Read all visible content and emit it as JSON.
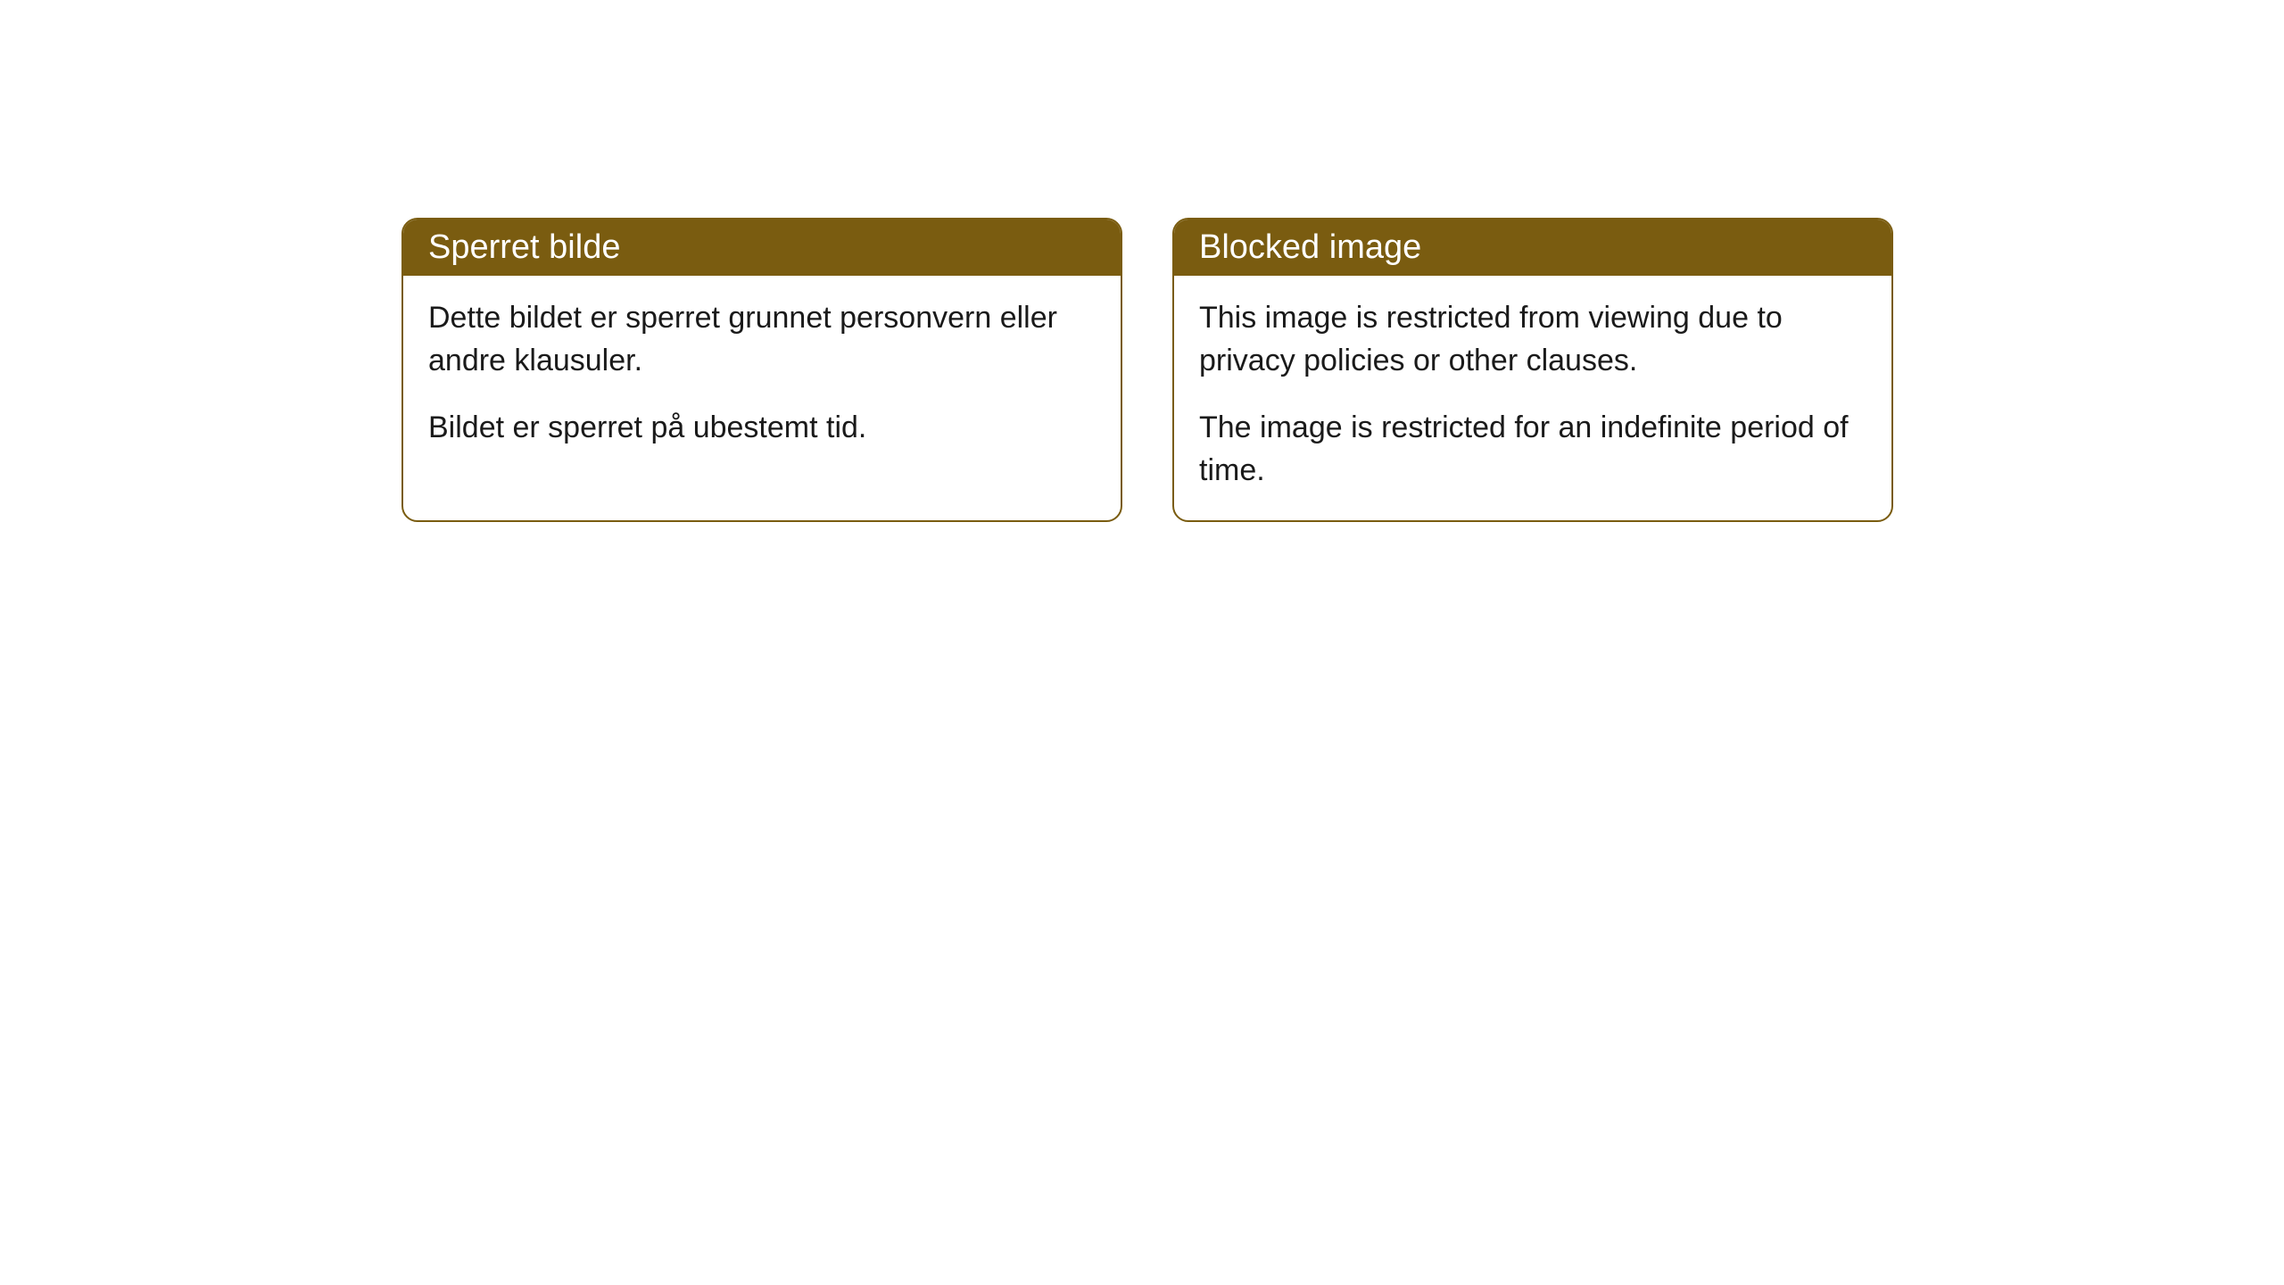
{
  "cards": [
    {
      "title": "Sperret bilde",
      "paragraph1": "Dette bildet er sperret grunnet personvern eller andre klausuler.",
      "paragraph2": "Bildet er sperret på ubestemt tid."
    },
    {
      "title": "Blocked image",
      "paragraph1": "This image is restricted from viewing due to privacy policies or other clauses.",
      "paragraph2": "The image is restricted for an indefinite period of time."
    }
  ],
  "styling": {
    "header_background_color": "#7a5c10",
    "header_text_color": "#ffffff",
    "border_color": "#7a5c10",
    "body_text_color": "#1a1a1a",
    "card_background_color": "#ffffff",
    "border_radius": 18,
    "title_fontsize": 38,
    "body_fontsize": 34
  }
}
